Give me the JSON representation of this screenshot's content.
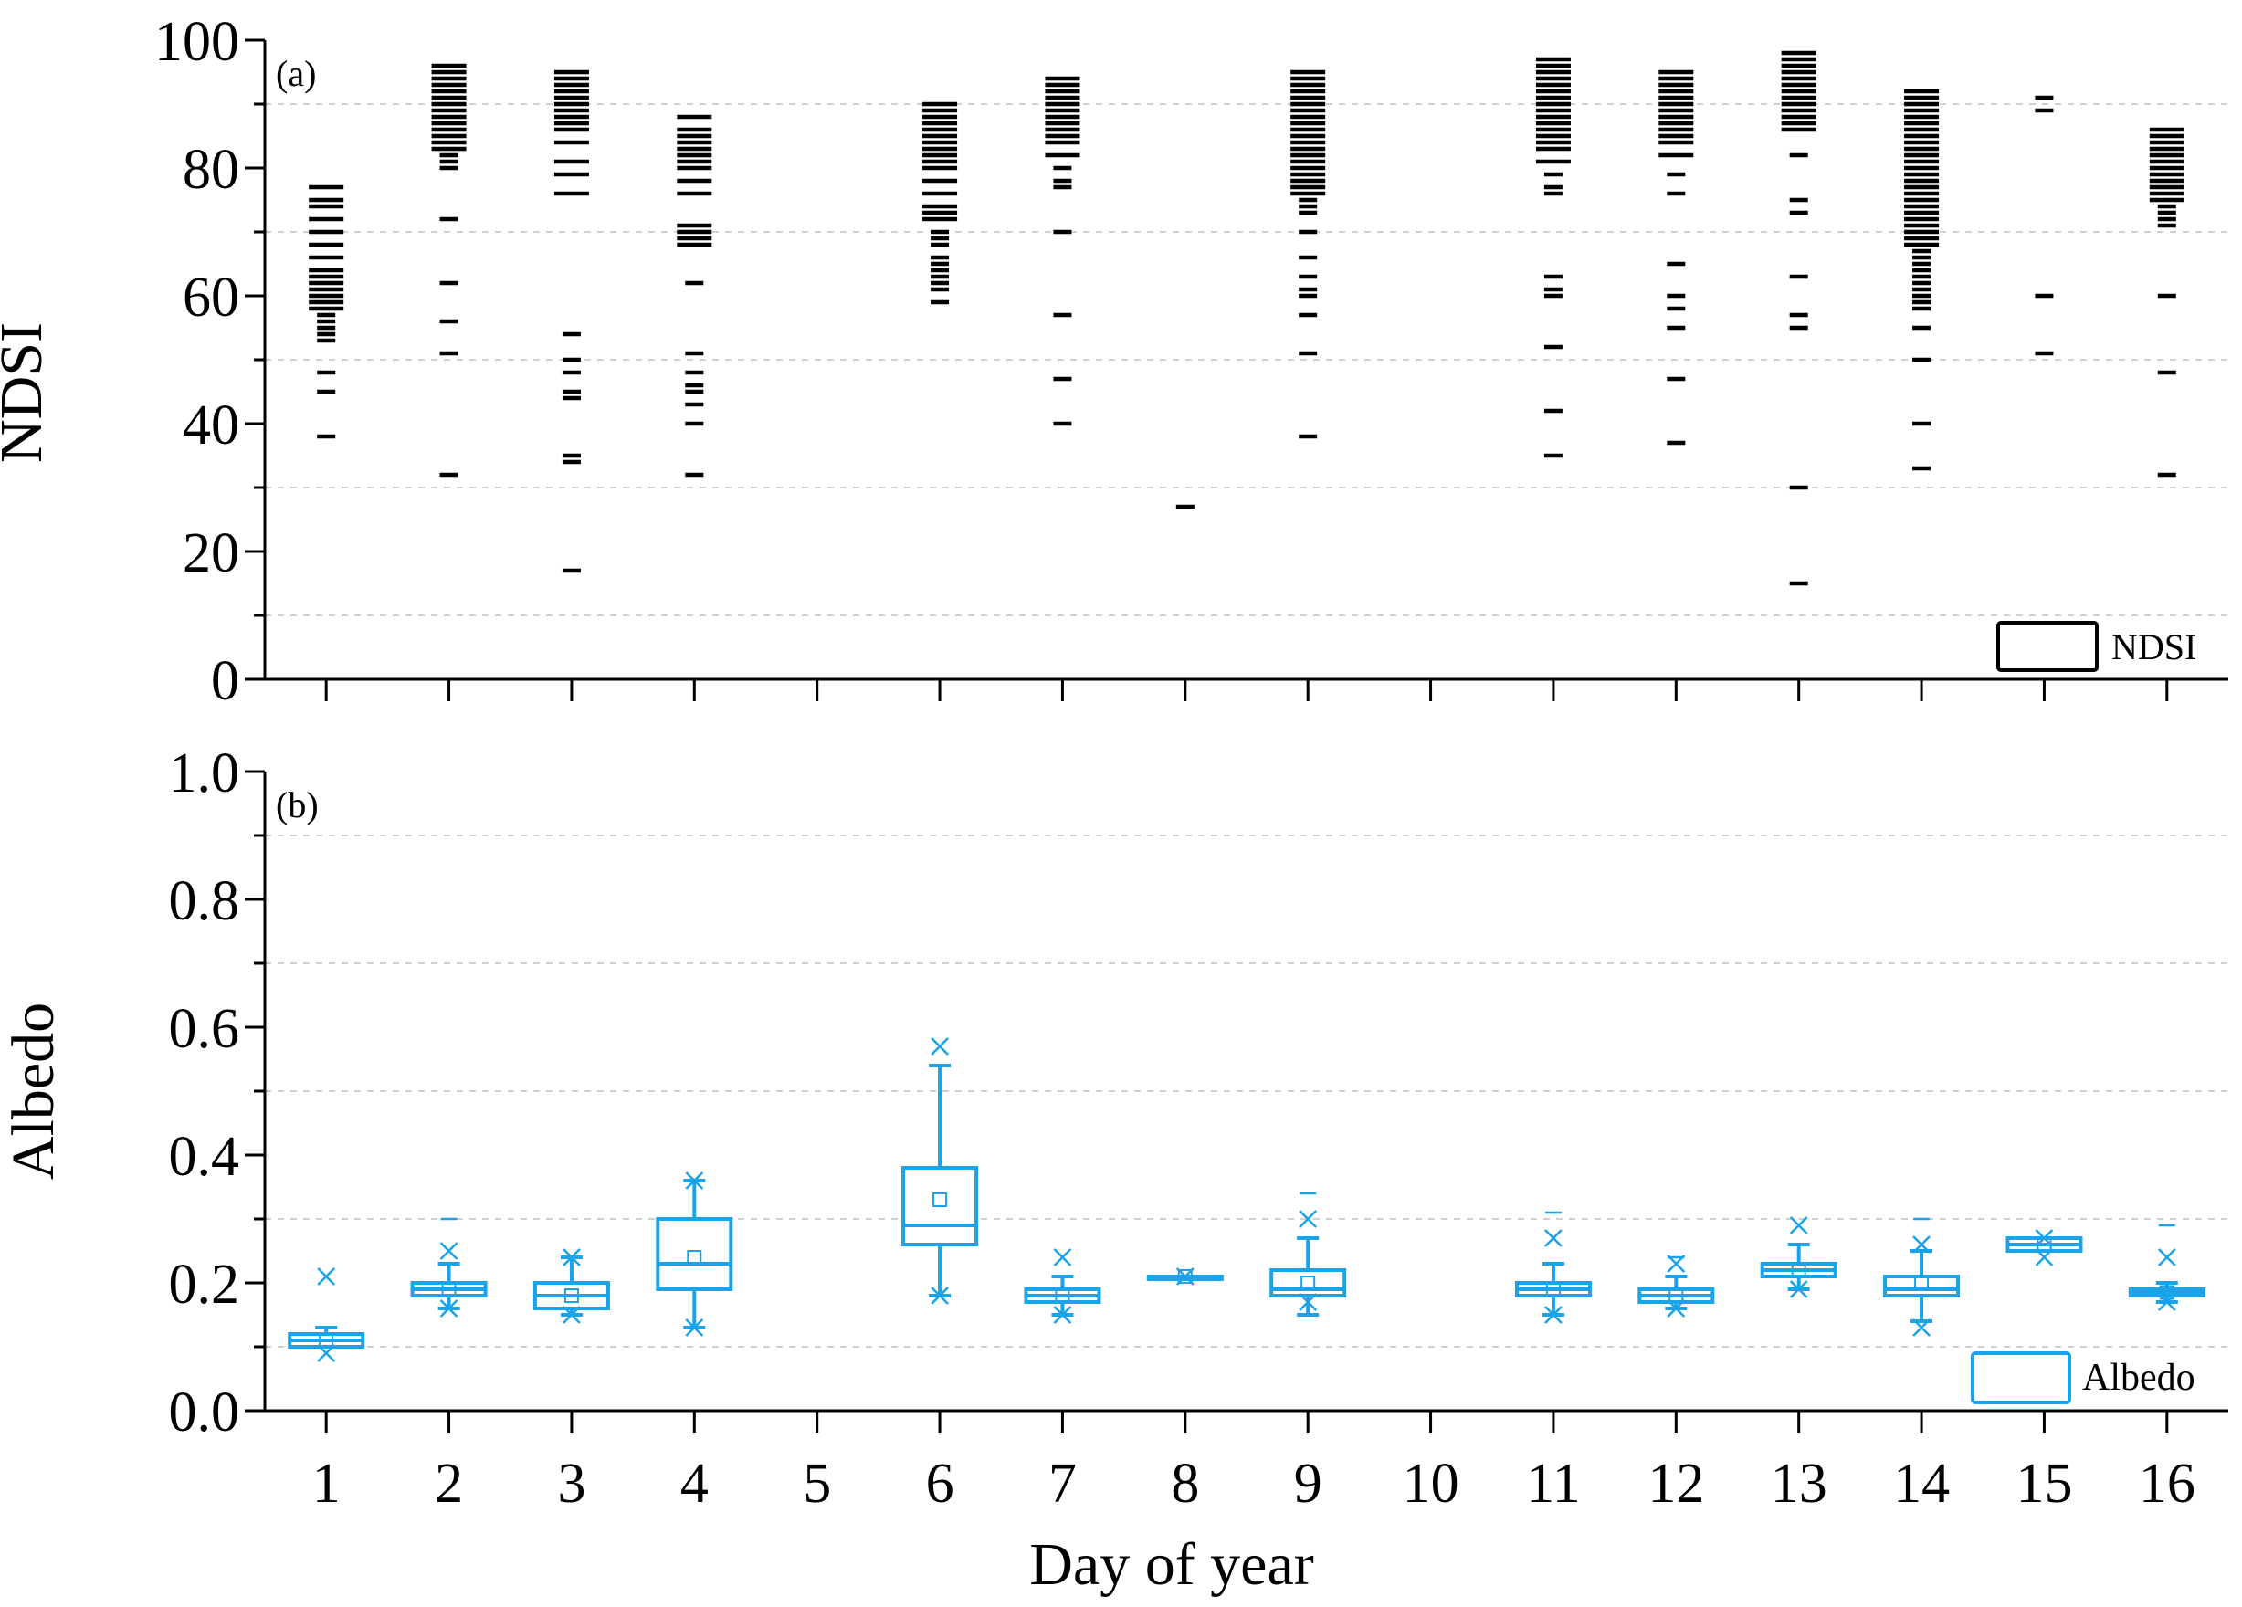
{
  "figure": {
    "xlabel": "Day of year"
  },
  "chart_data": [
    {
      "type": "scatter",
      "panel_label": "(a)",
      "ylabel": "NDSI",
      "legend": {
        "entries": [
          "NDSI"
        ],
        "placement": "bottom-right"
      },
      "xlim": [
        0.5,
        16.5
      ],
      "ylim": [
        0,
        100
      ],
      "yticks": [
        "0",
        "20",
        "40",
        "60",
        "80",
        "100"
      ],
      "grid": "horizontal dashed at 10, 30, 50, 70, 90",
      "x": [
        1,
        2,
        3,
        4,
        5,
        6,
        7,
        8,
        9,
        10,
        11,
        12,
        13,
        14,
        15,
        16
      ],
      "values": [
        {
          "day": 1,
          "values": [
            38,
            45,
            48,
            53,
            54,
            55,
            56,
            57,
            58,
            59,
            60,
            61,
            62,
            63,
            64,
            66,
            68,
            70,
            72,
            74,
            75,
            77
          ]
        },
        {
          "day": 2,
          "values": [
            32,
            51,
            56,
            62,
            72,
            80,
            81,
            82,
            83,
            84,
            85,
            86,
            87,
            88,
            89,
            90,
            91,
            92,
            93,
            94,
            95,
            96
          ]
        },
        {
          "day": 3,
          "values": [
            17,
            34,
            35,
            44,
            45,
            48,
            50,
            54,
            76,
            79,
            81,
            84,
            86,
            87,
            88,
            89,
            90,
            91,
            92,
            93,
            94,
            95
          ]
        },
        {
          "day": 4,
          "values": [
            32,
            40,
            43,
            45,
            46,
            48,
            51,
            62,
            68,
            69,
            70,
            71,
            76,
            78,
            80,
            81,
            82,
            83,
            84,
            85,
            86,
            88
          ]
        },
        {
          "day": 5,
          "values": []
        },
        {
          "day": 6,
          "values": [
            59,
            61,
            62,
            63,
            64,
            65,
            66,
            68,
            69,
            70,
            72,
            73,
            74,
            76,
            78,
            80,
            81,
            82,
            83,
            84,
            85,
            86,
            87,
            88,
            89,
            90
          ]
        },
        {
          "day": 7,
          "values": [
            40,
            47,
            57,
            70,
            77,
            78,
            80,
            82,
            84,
            85,
            86,
            87,
            88,
            89,
            90,
            91,
            92,
            93,
            94
          ]
        },
        {
          "day": 8,
          "values": [
            27
          ]
        },
        {
          "day": 9,
          "values": [
            38,
            51,
            57,
            60,
            61,
            63,
            66,
            70,
            73,
            74,
            75,
            76,
            77,
            78,
            79,
            80,
            81,
            82,
            83,
            84,
            85,
            86,
            87,
            88,
            89,
            90,
            91,
            92,
            93,
            94,
            95
          ]
        },
        {
          "day": 10,
          "values": []
        },
        {
          "day": 11,
          "values": [
            35,
            42,
            52,
            60,
            61,
            63,
            76,
            77,
            79,
            81,
            83,
            84,
            85,
            86,
            87,
            88,
            89,
            90,
            91,
            92,
            93,
            94,
            95,
            96,
            97
          ]
        },
        {
          "day": 12,
          "values": [
            37,
            47,
            55,
            58,
            60,
            65,
            76,
            79,
            82,
            84,
            85,
            86,
            87,
            88,
            89,
            90,
            91,
            92,
            93,
            94,
            95
          ]
        },
        {
          "day": 13,
          "values": [
            15,
            30,
            55,
            57,
            63,
            73,
            75,
            82,
            86,
            87,
            88,
            89,
            90,
            91,
            92,
            93,
            94,
            95,
            96,
            97,
            98
          ]
        },
        {
          "day": 14,
          "values": [
            33,
            40,
            50,
            55,
            58,
            59,
            60,
            61,
            62,
            63,
            64,
            65,
            66,
            67,
            68,
            69,
            70,
            71,
            72,
            73,
            74,
            75,
            76,
            77,
            78,
            79,
            80,
            81,
            82,
            83,
            84,
            85,
            86,
            87,
            88,
            89,
            90,
            91,
            92
          ]
        },
        {
          "day": 15,
          "values": [
            51,
            60,
            89,
            91
          ]
        },
        {
          "day": 16,
          "values": [
            32,
            48,
            60,
            71,
            72,
            73,
            74,
            75,
            76,
            77,
            78,
            79,
            80,
            81,
            82,
            83,
            84,
            85,
            86
          ]
        }
      ]
    },
    {
      "type": "box",
      "panel_label": "(b)",
      "ylabel": "Albedo",
      "legend": {
        "entries": [
          "Albedo"
        ],
        "placement": "bottom-right"
      },
      "xlim": [
        0.5,
        16.5
      ],
      "ylim": [
        0,
        1
      ],
      "yticks": [
        "0.0",
        "0.2",
        "0.4",
        "0.6",
        "0.8",
        "1.0"
      ],
      "xticks": [
        "1",
        "2",
        "3",
        "4",
        "5",
        "6",
        "7",
        "8",
        "9",
        "10",
        "11",
        "12",
        "13",
        "14",
        "15",
        "16"
      ],
      "grid": "horizontal dashed at 0.1, 0.3, 0.5, 0.7, 0.9",
      "color": "#1aa3e8",
      "boxes": [
        {
          "day": 1,
          "q1": 0.1,
          "median": 0.11,
          "q3": 0.12,
          "whisker_low": 0.1,
          "whisker_high": 0.13,
          "mean": 0.11,
          "extremes": [
            0.21,
            0.09
          ]
        },
        {
          "day": 2,
          "q1": 0.18,
          "median": 0.19,
          "q3": 0.2,
          "whisker_low": 0.16,
          "whisker_high": 0.23,
          "mean": 0.19,
          "extremes": [
            0.25,
            0.16
          ],
          "outliers": [
            0.3
          ]
        },
        {
          "day": 3,
          "q1": 0.16,
          "median": 0.18,
          "q3": 0.2,
          "whisker_low": 0.15,
          "whisker_high": 0.24,
          "mean": 0.18,
          "extremes": [
            0.24,
            0.15
          ]
        },
        {
          "day": 4,
          "q1": 0.19,
          "median": 0.23,
          "q3": 0.3,
          "whisker_low": 0.13,
          "whisker_high": 0.36,
          "mean": 0.24,
          "extremes": [
            0.36,
            0.13
          ]
        },
        {
          "day": 5,
          "empty": true
        },
        {
          "day": 6,
          "q1": 0.26,
          "median": 0.29,
          "q3": 0.38,
          "whisker_low": 0.18,
          "whisker_high": 0.54,
          "mean": 0.33,
          "extremes": [
            0.57,
            0.18
          ]
        },
        {
          "day": 7,
          "q1": 0.17,
          "median": 0.18,
          "q3": 0.19,
          "whisker_low": 0.15,
          "whisker_high": 0.21,
          "mean": 0.18,
          "extremes": [
            0.24,
            0.15
          ]
        },
        {
          "day": 8,
          "q1": 0.21,
          "median": 0.21,
          "q3": 0.21,
          "whisker_low": 0.21,
          "whisker_high": 0.21,
          "mean": 0.21,
          "extremes": [
            0.21
          ]
        },
        {
          "day": 9,
          "q1": 0.18,
          "median": 0.19,
          "q3": 0.22,
          "whisker_low": 0.15,
          "whisker_high": 0.27,
          "mean": 0.2,
          "extremes": [
            0.3,
            0.17
          ],
          "outliers": [
            0.34
          ]
        },
        {
          "day": 10,
          "empty": true
        },
        {
          "day": 11,
          "q1": 0.18,
          "median": 0.19,
          "q3": 0.2,
          "whisker_low": 0.15,
          "whisker_high": 0.23,
          "mean": 0.19,
          "extremes": [
            0.27,
            0.15
          ],
          "outliers": [
            0.31
          ]
        },
        {
          "day": 12,
          "q1": 0.17,
          "median": 0.18,
          "q3": 0.19,
          "whisker_low": 0.16,
          "whisker_high": 0.21,
          "mean": 0.18,
          "extremes": [
            0.23,
            0.16
          ],
          "outliers": [
            0.24
          ]
        },
        {
          "day": 13,
          "q1": 0.21,
          "median": 0.22,
          "q3": 0.23,
          "whisker_low": 0.19,
          "whisker_high": 0.26,
          "mean": 0.22,
          "extremes": [
            0.29,
            0.19
          ]
        },
        {
          "day": 14,
          "q1": 0.18,
          "median": 0.19,
          "q3": 0.21,
          "whisker_low": 0.14,
          "whisker_high": 0.25,
          "mean": 0.2,
          "extremes": [
            0.26,
            0.13
          ],
          "outliers": [
            0.3
          ]
        },
        {
          "day": 15,
          "q1": 0.25,
          "median": 0.26,
          "q3": 0.27,
          "whisker_low": 0.25,
          "whisker_high": 0.27,
          "mean": 0.26,
          "extremes": [
            0.27,
            0.24
          ]
        },
        {
          "day": 16,
          "q1": 0.18,
          "median": 0.185,
          "q3": 0.19,
          "whisker_low": 0.17,
          "whisker_high": 0.2,
          "mean": 0.185,
          "extremes": [
            0.24,
            0.17
          ],
          "outliers": [
            0.29
          ]
        }
      ]
    }
  ]
}
